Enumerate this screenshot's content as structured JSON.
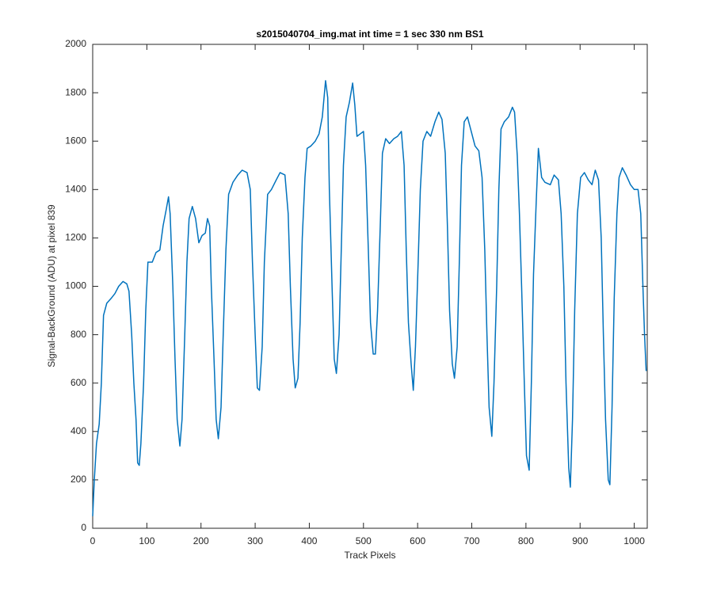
{
  "chart_data": {
    "type": "line",
    "title": "s2015040704_img.mat int time = 1 sec  330 nm BS1",
    "x_label": "Track Pixels",
    "y_label": "Signal-BackGround (ADU) at pixel 839",
    "color": "#0072bd",
    "xlim": [
      0,
      1024
    ],
    "ylim": [
      0,
      2000
    ],
    "xticks": [
      0,
      100,
      200,
      300,
      400,
      500,
      600,
      700,
      800,
      900,
      1000
    ],
    "yticks": [
      0,
      200,
      400,
      600,
      800,
      1000,
      1200,
      1400,
      1600,
      1800,
      2000
    ],
    "x": [
      0,
      3,
      7,
      12,
      16,
      20,
      26,
      34,
      41,
      48,
      56,
      63,
      67,
      72,
      76,
      80,
      83,
      86,
      89,
      94,
      98,
      102,
      110,
      117,
      124,
      130,
      136,
      140,
      143,
      148,
      152,
      156,
      161,
      165,
      170,
      174,
      178,
      184,
      190,
      196,
      202,
      208,
      212,
      216,
      219,
      224,
      228,
      232,
      237,
      241,
      246,
      251,
      259,
      268,
      276,
      285,
      291,
      295,
      300,
      304,
      308,
      313,
      317,
      323,
      330,
      339,
      346,
      355,
      361,
      365,
      370,
      374,
      379,
      383,
      387,
      392,
      396,
      403,
      411,
      418,
      424,
      430,
      434,
      437,
      442,
      446,
      450,
      455,
      459,
      463,
      468,
      474,
      480,
      484,
      488,
      494,
      500,
      504,
      509,
      513,
      518,
      522,
      526,
      531,
      535,
      541,
      548,
      556,
      563,
      570,
      575,
      579,
      583,
      588,
      592,
      596,
      601,
      605,
      610,
      617,
      624,
      632,
      639,
      645,
      651,
      655,
      659,
      664,
      668,
      673,
      677,
      681,
      686,
      692,
      699,
      706,
      713,
      719,
      724,
      728,
      732,
      737,
      741,
      746,
      750,
      754,
      760,
      768,
      775,
      779,
      784,
      788,
      792,
      797,
      801,
      806,
      810,
      814,
      819,
      823,
      829,
      835,
      845,
      852,
      860,
      865,
      870,
      874,
      879,
      882,
      886,
      890,
      895,
      901,
      908,
      915,
      922,
      928,
      934,
      939,
      943,
      947,
      952,
      955,
      959,
      963,
      968,
      972,
      978,
      985,
      993,
      1000,
      1007,
      1012,
      1016,
      1019,
      1022
    ],
    "values": [
      50,
      200,
      350,
      430,
      600,
      880,
      930,
      950,
      970,
      1000,
      1020,
      1010,
      980,
      800,
      600,
      450,
      270,
      260,
      350,
      600,
      900,
      1100,
      1100,
      1140,
      1150,
      1250,
      1320,
      1370,
      1300,
      1000,
      700,
      450,
      340,
      450,
      800,
      1100,
      1280,
      1330,
      1280,
      1180,
      1210,
      1220,
      1280,
      1250,
      1000,
      700,
      450,
      370,
      500,
      800,
      1150,
      1380,
      1430,
      1460,
      1480,
      1470,
      1400,
      1100,
      800,
      580,
      570,
      750,
      1100,
      1380,
      1400,
      1440,
      1470,
      1460,
      1300,
      1000,
      700,
      580,
      620,
      850,
      1200,
      1450,
      1570,
      1580,
      1600,
      1630,
      1700,
      1850,
      1780,
      1400,
      1000,
      700,
      640,
      800,
      1150,
      1500,
      1700,
      1760,
      1840,
      1750,
      1620,
      1630,
      1640,
      1500,
      1150,
      850,
      720,
      720,
      900,
      1250,
      1550,
      1610,
      1590,
      1610,
      1620,
      1640,
      1500,
      1150,
      850,
      680,
      570,
      750,
      1100,
      1400,
      1600,
      1640,
      1620,
      1680,
      1720,
      1690,
      1550,
      1250,
      900,
      680,
      620,
      750,
      1100,
      1500,
      1680,
      1700,
      1640,
      1580,
      1560,
      1450,
      1150,
      800,
      500,
      380,
      600,
      1000,
      1400,
      1650,
      1680,
      1700,
      1740,
      1720,
      1540,
      1300,
      1000,
      600,
      300,
      240,
      600,
      1050,
      1350,
      1570,
      1450,
      1430,
      1420,
      1460,
      1440,
      1300,
      1000,
      600,
      250,
      170,
      450,
      900,
      1300,
      1450,
      1470,
      1440,
      1420,
      1480,
      1440,
      1200,
      800,
      450,
      200,
      180,
      500,
      950,
      1300,
      1450,
      1490,
      1460,
      1420,
      1400,
      1400,
      1300,
      1000,
      800,
      650
    ]
  }
}
